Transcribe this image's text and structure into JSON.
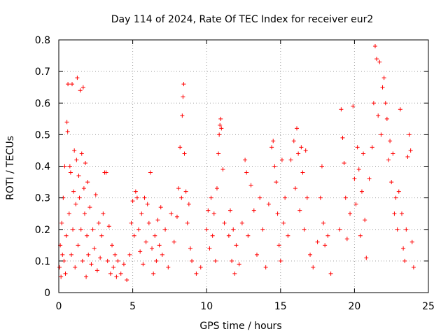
{
  "chart_data": {
    "type": "scatter",
    "title": "Day 114 of 2024, Rate Of TEC Index for receiver eur2",
    "xlabel": "GPS time / hours",
    "ylabel": "ROTI / TECUs",
    "xlim": [
      0,
      25
    ],
    "ylim": [
      0,
      0.8
    ],
    "x_ticks": [
      0,
      5,
      10,
      15,
      20,
      25
    ],
    "y_ticks": [
      0,
      0.1,
      0.2,
      0.3,
      0.4,
      0.5,
      0.6,
      0.7,
      0.8
    ],
    "x_tick_labels": [
      "0",
      "5",
      "10",
      "15",
      "20",
      "25"
    ],
    "y_tick_labels": [
      "0",
      "0.1",
      "0.2",
      "0.3",
      "0.4",
      "0.5",
      "0.6",
      "0.7",
      "0.8"
    ],
    "grid": true,
    "marker": "+",
    "color": "#ff0000",
    "series": [
      {
        "points": [
          [
            0.05,
            0.08
          ],
          [
            0.1,
            0.15
          ],
          [
            0.15,
            0.05
          ],
          [
            0.2,
            0.22
          ],
          [
            0.25,
            0.12
          ],
          [
            0.3,
            0.3
          ],
          [
            0.35,
            0.1
          ],
          [
            0.4,
            0.4
          ],
          [
            0.45,
            0.06
          ],
          [
            0.5,
            0.18
          ],
          [
            0.55,
            0.54
          ],
          [
            0.6,
            0.51
          ],
          [
            0.62,
            0.66
          ],
          [
            0.7,
            0.25
          ],
          [
            0.75,
            0.4
          ],
          [
            0.8,
            0.38
          ],
          [
            0.85,
            0.12
          ],
          [
            0.9,
            0.66
          ],
          [
            0.95,
            0.2
          ],
          [
            1.0,
            0.32
          ],
          [
            1.05,
            0.45
          ],
          [
            1.1,
            0.08
          ],
          [
            1.15,
            0.28
          ],
          [
            1.2,
            0.42
          ],
          [
            1.25,
            0.68
          ],
          [
            1.3,
            0.15
          ],
          [
            1.35,
            0.37
          ],
          [
            1.4,
            0.3
          ],
          [
            1.45,
            0.64
          ],
          [
            1.5,
            0.2
          ],
          [
            1.55,
            0.44
          ],
          [
            1.6,
            0.1
          ],
          [
            1.65,
            0.65
          ],
          [
            1.7,
            0.33
          ],
          [
            1.75,
            0.25
          ],
          [
            1.8,
            0.41
          ],
          [
            1.85,
            0.05
          ],
          [
            1.9,
            0.18
          ],
          [
            1.95,
            0.35
          ],
          [
            2.0,
            0.12
          ],
          [
            2.1,
            0.27
          ],
          [
            2.2,
            0.09
          ],
          [
            2.3,
            0.2
          ],
          [
            2.4,
            0.14
          ],
          [
            2.5,
            0.31
          ],
          [
            2.6,
            0.07
          ],
          [
            2.7,
            0.22
          ],
          [
            2.8,
            0.11
          ],
          [
            2.9,
            0.18
          ],
          [
            3.0,
            0.25
          ],
          [
            3.1,
            0.38
          ],
          [
            3.2,
            0.38
          ],
          [
            3.3,
            0.1
          ],
          [
            3.4,
            0.21
          ],
          [
            3.5,
            0.06
          ],
          [
            3.6,
            0.15
          ],
          [
            3.7,
            0.08
          ],
          [
            3.8,
            0.12
          ],
          [
            3.9,
            0.05
          ],
          [
            4.0,
            0.1
          ],
          [
            4.2,
            0.06
          ],
          [
            4.4,
            0.09
          ],
          [
            4.6,
            0.04
          ],
          [
            4.8,
            0.12
          ],
          [
            4.9,
            0.22
          ],
          [
            5.0,
            0.29
          ],
          [
            5.1,
            0.18
          ],
          [
            5.2,
            0.32
          ],
          [
            5.3,
            0.3
          ],
          [
            5.4,
            0.2
          ],
          [
            5.5,
            0.13
          ],
          [
            5.6,
            0.25
          ],
          [
            5.7,
            0.09
          ],
          [
            5.8,
            0.3
          ],
          [
            5.9,
            0.16
          ],
          [
            6.0,
            0.28
          ],
          [
            6.1,
            0.22
          ],
          [
            6.2,
            0.38
          ],
          [
            6.3,
            0.14
          ],
          [
            6.4,
            0.06
          ],
          [
            6.5,
            0.18
          ],
          [
            6.6,
            0.1
          ],
          [
            6.7,
            0.23
          ],
          [
            6.8,
            0.15
          ],
          [
            6.9,
            0.27
          ],
          [
            7.0,
            0.12
          ],
          [
            7.2,
            0.2
          ],
          [
            7.4,
            0.08
          ],
          [
            7.6,
            0.25
          ],
          [
            7.8,
            0.16
          ],
          [
            8.0,
            0.24
          ],
          [
            8.1,
            0.33
          ],
          [
            8.2,
            0.46
          ],
          [
            8.3,
            0.3
          ],
          [
            8.35,
            0.56
          ],
          [
            8.4,
            0.62
          ],
          [
            8.45,
            0.66
          ],
          [
            8.5,
            0.44
          ],
          [
            8.6,
            0.32
          ],
          [
            8.7,
            0.22
          ],
          [
            8.8,
            0.28
          ],
          [
            8.9,
            0.14
          ],
          [
            9.0,
            0.1
          ],
          [
            9.3,
            0.06
          ],
          [
            9.6,
            0.08
          ],
          [
            10.0,
            0.2
          ],
          [
            10.1,
            0.26
          ],
          [
            10.2,
            0.14
          ],
          [
            10.3,
            0.3
          ],
          [
            10.4,
            0.18
          ],
          [
            10.5,
            0.25
          ],
          [
            10.6,
            0.1
          ],
          [
            10.7,
            0.33
          ],
          [
            10.8,
            0.44
          ],
          [
            10.85,
            0.5
          ],
          [
            10.9,
            0.53
          ],
          [
            10.95,
            0.55
          ],
          [
            11.0,
            0.52
          ],
          [
            11.1,
            0.39
          ],
          [
            11.2,
            0.22
          ],
          [
            11.5,
            0.18
          ],
          [
            11.6,
            0.26
          ],
          [
            11.7,
            0.1
          ],
          [
            11.8,
            0.2
          ],
          [
            11.9,
            0.06
          ],
          [
            12.0,
            0.15
          ],
          [
            12.2,
            0.09
          ],
          [
            12.4,
            0.22
          ],
          [
            12.6,
            0.42
          ],
          [
            12.7,
            0.38
          ],
          [
            12.8,
            0.18
          ],
          [
            13.0,
            0.34
          ],
          [
            13.2,
            0.26
          ],
          [
            13.4,
            0.12
          ],
          [
            13.6,
            0.3
          ],
          [
            13.8,
            0.2
          ],
          [
            14.0,
            0.08
          ],
          [
            14.2,
            0.28
          ],
          [
            14.4,
            0.46
          ],
          [
            14.5,
            0.48
          ],
          [
            14.6,
            0.4
          ],
          [
            14.7,
            0.35
          ],
          [
            14.8,
            0.25
          ],
          [
            14.9,
            0.15
          ],
          [
            15.0,
            0.1
          ],
          [
            15.1,
            0.42
          ],
          [
            15.2,
            0.22
          ],
          [
            15.3,
            0.3
          ],
          [
            15.5,
            0.18
          ],
          [
            15.7,
            0.42
          ],
          [
            15.9,
            0.48
          ],
          [
            16.0,
            0.33
          ],
          [
            16.1,
            0.52
          ],
          [
            16.2,
            0.44
          ],
          [
            16.3,
            0.26
          ],
          [
            16.4,
            0.46
          ],
          [
            16.5,
            0.38
          ],
          [
            16.6,
            0.2
          ],
          [
            16.7,
            0.45
          ],
          [
            16.8,
            0.3
          ],
          [
            17.0,
            0.12
          ],
          [
            17.2,
            0.08
          ],
          [
            17.5,
            0.16
          ],
          [
            17.7,
            0.3
          ],
          [
            17.8,
            0.4
          ],
          [
            17.9,
            0.22
          ],
          [
            18.0,
            0.15
          ],
          [
            18.2,
            0.18
          ],
          [
            18.4,
            0.06
          ],
          [
            19.0,
            0.2
          ],
          [
            19.1,
            0.58
          ],
          [
            19.2,
            0.49
          ],
          [
            19.3,
            0.41
          ],
          [
            19.4,
            0.3
          ],
          [
            19.5,
            0.17
          ],
          [
            19.7,
            0.25
          ],
          [
            19.9,
            0.59
          ],
          [
            20.0,
            0.36
          ],
          [
            20.1,
            0.28
          ],
          [
            20.2,
            0.46
          ],
          [
            20.3,
            0.39
          ],
          [
            20.4,
            0.18
          ],
          [
            20.5,
            0.32
          ],
          [
            20.6,
            0.44
          ],
          [
            20.7,
            0.23
          ],
          [
            20.8,
            0.11
          ],
          [
            21.0,
            0.36
          ],
          [
            21.2,
            0.46
          ],
          [
            21.3,
            0.6
          ],
          [
            21.4,
            0.78
          ],
          [
            21.5,
            0.74
          ],
          [
            21.6,
            0.56
          ],
          [
            21.7,
            0.73
          ],
          [
            21.8,
            0.5
          ],
          [
            21.9,
            0.65
          ],
          [
            22.0,
            0.68
          ],
          [
            22.1,
            0.6
          ],
          [
            22.2,
            0.55
          ],
          [
            22.3,
            0.42
          ],
          [
            22.4,
            0.48
          ],
          [
            22.5,
            0.35
          ],
          [
            22.6,
            0.44
          ],
          [
            22.7,
            0.25
          ],
          [
            22.8,
            0.3
          ],
          [
            22.9,
            0.2
          ],
          [
            23.0,
            0.32
          ],
          [
            23.1,
            0.58
          ],
          [
            23.2,
            0.25
          ],
          [
            23.3,
            0.14
          ],
          [
            23.4,
            0.1
          ],
          [
            23.5,
            0.2
          ],
          [
            23.6,
            0.43
          ],
          [
            23.7,
            0.5
          ],
          [
            23.8,
            0.45
          ],
          [
            23.9,
            0.16
          ],
          [
            24.0,
            0.08
          ]
        ]
      }
    ]
  }
}
